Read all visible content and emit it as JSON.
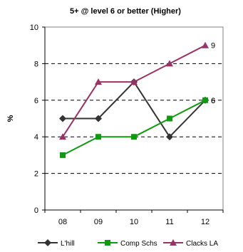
{
  "chart_data": {
    "type": "line",
    "title": "5+ @ level 6 or better (Higher)",
    "xlabel": "",
    "ylabel": "%",
    "categories": [
      "08",
      "09",
      "10",
      "11",
      "12"
    ],
    "ylim": [
      0,
      10
    ],
    "yticks": [
      0,
      2,
      4,
      6,
      8,
      10
    ],
    "grid": "horizontal dashed",
    "legend_position": "bottom",
    "series": [
      {
        "name": "L'hill",
        "values": [
          5,
          5,
          7,
          4,
          6
        ],
        "color": "#333333",
        "marker": "diamond"
      },
      {
        "name": "Comp Schs",
        "values": [
          3,
          4,
          4,
          5,
          6
        ],
        "color": "#119911",
        "marker": "square"
      },
      {
        "name": "Clacks LA",
        "values": [
          4,
          7,
          7,
          8,
          9
        ],
        "color": "#993366",
        "marker": "triangle"
      }
    ],
    "end_labels": [
      {
        "series": "Clacks LA",
        "text": "9"
      },
      {
        "series": "L'hill",
        "text": "6"
      },
      {
        "series": "Comp Schs",
        "text": "6"
      }
    ]
  }
}
